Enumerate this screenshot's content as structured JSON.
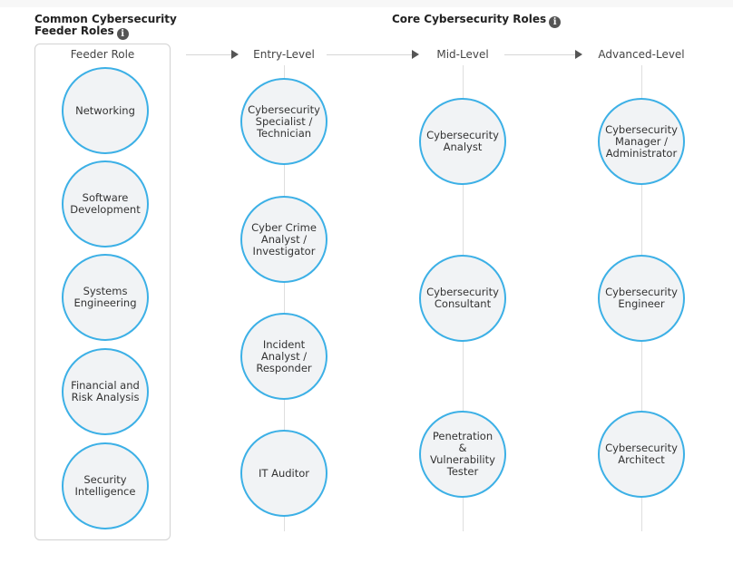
{
  "headings": {
    "feeder_line1": "Common Cybersecurity",
    "feeder_line2": "Feeder Roles",
    "core": "Core Cybersecurity Roles"
  },
  "columns": {
    "feeder": "Feeder Role",
    "entry": "Entry-Level",
    "mid": "Mid-Level",
    "advanced": "Advanced-Level"
  },
  "feeder_roles": [
    "Networking",
    "Software Development",
    "Systems Engineering",
    "Financial and Risk Analysis",
    "Security Intelligence"
  ],
  "entry_roles": [
    "Cybersecurity Specialist / Technician",
    "Cyber Crime Analyst / Investigator",
    "Incident Analyst / Responder",
    "IT Auditor"
  ],
  "mid_roles": [
    "Cybersecurity Analyst",
    "Cybersecurity Consultant",
    "Penetration & Vulnerability Tester"
  ],
  "advanced_roles": [
    "Cybersecurity Manager / Administrator",
    "Cybersecurity Engineer",
    "Cybersecurity Architect"
  ],
  "icons": {
    "info": "info-icon",
    "arrow": "arrow-right-icon"
  },
  "colors": {
    "node_border": "#3cb0e6",
    "node_fill": "#f1f3f5"
  }
}
